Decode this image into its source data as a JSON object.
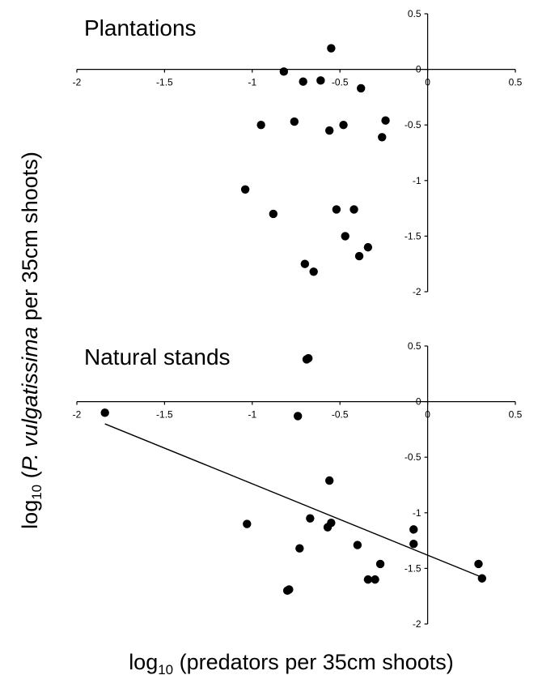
{
  "figure": {
    "ylabel_prefix": "log",
    "ylabel_sub": "10",
    "ylabel_open": " (",
    "ylabel_italic": "P. vulgatissima",
    "ylabel_rest": " per 35cm shoots)",
    "xlabel_prefix": "log",
    "xlabel_sub": "10",
    "xlabel_rest": " (predators per 35cm shoots)"
  },
  "chart_data": [
    {
      "type": "scatter",
      "title": "Plantations",
      "xlim": [
        -2,
        0.5
      ],
      "ylim": [
        -2,
        0.5
      ],
      "x_ticks": [
        {
          "value": -2,
          "label": "-2"
        },
        {
          "value": -1.5,
          "label": "-1.5"
        },
        {
          "value": -1,
          "label": "-1"
        },
        {
          "value": -0.5,
          "label": "-0.5"
        },
        {
          "value": 0,
          "label": "0"
        },
        {
          "value": 0.5,
          "label": "0.5"
        }
      ],
      "y_ticks": [
        {
          "value": 0.5,
          "label": "0.5"
        },
        {
          "value": 0,
          "label": "0"
        },
        {
          "value": -0.5,
          "label": "-0.5"
        },
        {
          "value": -1,
          "label": "-1"
        },
        {
          "value": -1.5,
          "label": "-1.5"
        },
        {
          "value": -2,
          "label": "-2"
        }
      ],
      "points": [
        {
          "x": -0.55,
          "y": 0.19
        },
        {
          "x": -0.82,
          "y": -0.02
        },
        {
          "x": -0.71,
          "y": -0.11
        },
        {
          "x": -0.61,
          "y": -0.1
        },
        {
          "x": -0.38,
          "y": -0.17
        },
        {
          "x": -0.95,
          "y": -0.5
        },
        {
          "x": -0.76,
          "y": -0.47
        },
        {
          "x": -0.56,
          "y": -0.55
        },
        {
          "x": -0.48,
          "y": -0.5
        },
        {
          "x": -0.24,
          "y": -0.46
        },
        {
          "x": -0.26,
          "y": -0.61
        },
        {
          "x": -1.04,
          "y": -1.08
        },
        {
          "x": -0.88,
          "y": -1.3
        },
        {
          "x": -0.52,
          "y": -1.26
        },
        {
          "x": -0.42,
          "y": -1.26
        },
        {
          "x": -0.47,
          "y": -1.5
        },
        {
          "x": -0.34,
          "y": -1.6
        },
        {
          "x": -0.39,
          "y": -1.68
        },
        {
          "x": -0.7,
          "y": -1.75
        },
        {
          "x": -0.65,
          "y": -1.82
        }
      ]
    },
    {
      "type": "scatter",
      "title": "Natural stands",
      "xlim": [
        -2,
        0.5
      ],
      "ylim": [
        -2,
        0.5
      ],
      "x_ticks": [
        {
          "value": -2,
          "label": "-2"
        },
        {
          "value": -1.5,
          "label": "-1.5"
        },
        {
          "value": -1,
          "label": "-1"
        },
        {
          "value": -0.5,
          "label": "-0.5"
        },
        {
          "value": 0,
          "label": "0"
        },
        {
          "value": 0.5,
          "label": "0.5"
        }
      ],
      "y_ticks": [
        {
          "value": 0.5,
          "label": "0.5"
        },
        {
          "value": 0,
          "label": "0"
        },
        {
          "value": -0.5,
          "label": "-0.5"
        },
        {
          "value": -1,
          "label": "-1"
        },
        {
          "value": -1.5,
          "label": "-1.5"
        },
        {
          "value": -2,
          "label": "-2"
        }
      ],
      "points": [
        {
          "x": -0.69,
          "y": 0.38
        },
        {
          "x": -0.68,
          "y": 0.39
        },
        {
          "x": -1.84,
          "y": -0.1
        },
        {
          "x": -0.74,
          "y": -0.13
        },
        {
          "x": -0.56,
          "y": -0.71
        },
        {
          "x": -1.03,
          "y": -1.1
        },
        {
          "x": -0.67,
          "y": -1.05
        },
        {
          "x": -0.55,
          "y": -1.09
        },
        {
          "x": -0.57,
          "y": -1.13
        },
        {
          "x": -0.73,
          "y": -1.32
        },
        {
          "x": -0.4,
          "y": -1.29
        },
        {
          "x": -0.08,
          "y": -1.15
        },
        {
          "x": -0.08,
          "y": -1.28
        },
        {
          "x": -0.27,
          "y": -1.46
        },
        {
          "x": -0.34,
          "y": -1.6
        },
        {
          "x": -0.3,
          "y": -1.6
        },
        {
          "x": -0.8,
          "y": -1.7
        },
        {
          "x": -0.79,
          "y": -1.69
        },
        {
          "x": 0.29,
          "y": -1.46
        },
        {
          "x": 0.31,
          "y": -1.59
        }
      ],
      "fit_line": {
        "x": [
          -1.84,
          0.31
        ],
        "y": [
          -0.2,
          -1.58
        ]
      }
    }
  ]
}
